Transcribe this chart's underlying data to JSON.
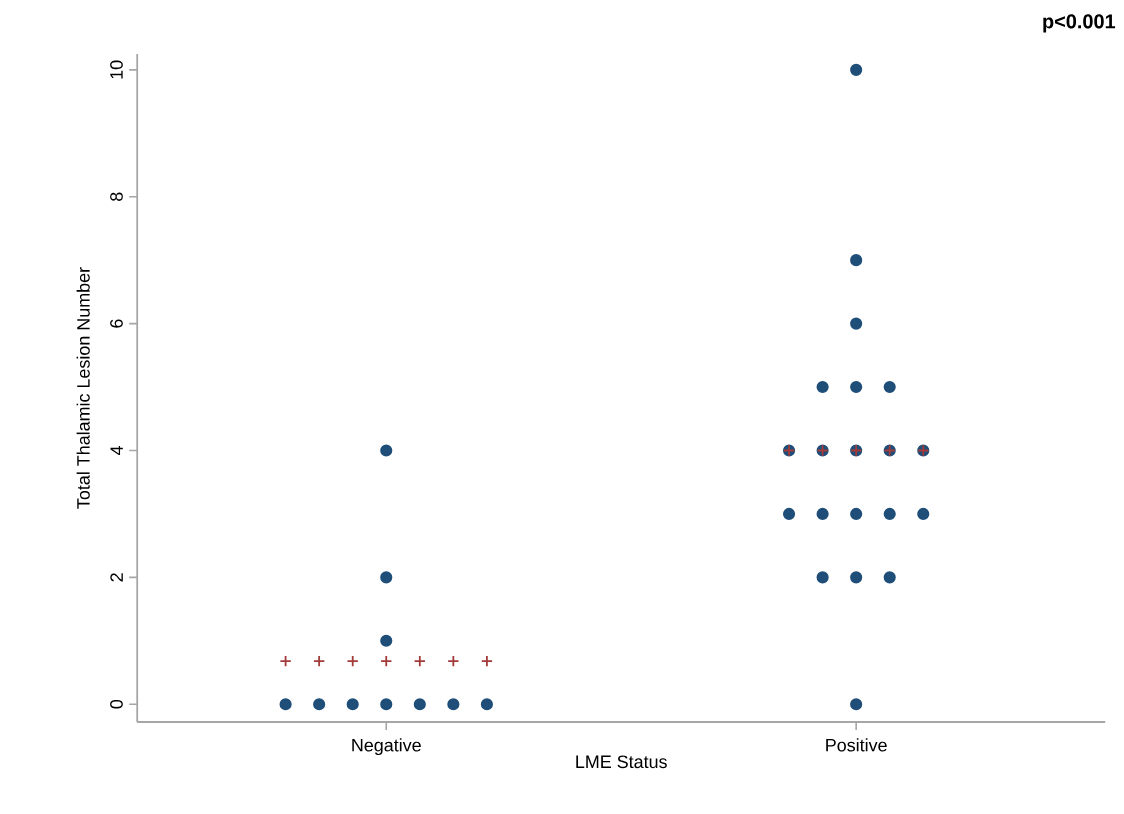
{
  "chart_data": {
    "type": "scatter",
    "xlabel": "LME Status",
    "ylabel": "Total Thalamic Lesion Number",
    "annotations": [
      "p<0.001"
    ],
    "categories": [
      "Negative",
      "Positive"
    ],
    "ylim": [
      -0.28,
      10.25
    ],
    "yticks": [
      0,
      2,
      4,
      6,
      8,
      10
    ],
    "series": [
      {
        "color": "#1f4e79",
        "marker": "circle",
        "x": [
          "Negative",
          "Negative",
          "Negative",
          "Negative",
          "Negative",
          "Negative",
          "Negative",
          "Negative",
          "Negative",
          "Negative",
          "Positive",
          "Positive",
          "Positive",
          "Positive",
          "Positive",
          "Positive",
          "Positive",
          "Positive",
          "Positive",
          "Positive",
          "Positive",
          "Positive",
          "Positive",
          "Positive",
          "Positive",
          "Positive",
          "Positive",
          "Positive",
          "Positive",
          "Positive"
        ],
        "values": [
          0,
          0,
          0,
          0,
          0,
          0,
          0,
          1,
          2,
          4,
          0,
          2,
          2,
          2,
          3,
          3,
          3,
          3,
          3,
          4,
          4,
          4,
          4,
          4,
          5,
          5,
          5,
          6,
          7,
          10
        ]
      },
      {
        "color": "#a33a3a",
        "marker": "cross",
        "x": [
          "Negative",
          "Negative",
          "Negative",
          "Negative",
          "Negative",
          "Negative",
          "Negative",
          "Positive",
          "Positive",
          "Positive",
          "Positive",
          "Positive"
        ],
        "values": [
          0.68,
          0.68,
          0.68,
          0.68,
          0.68,
          0.68,
          0.68,
          4,
          4,
          4,
          4,
          4
        ]
      }
    ]
  }
}
